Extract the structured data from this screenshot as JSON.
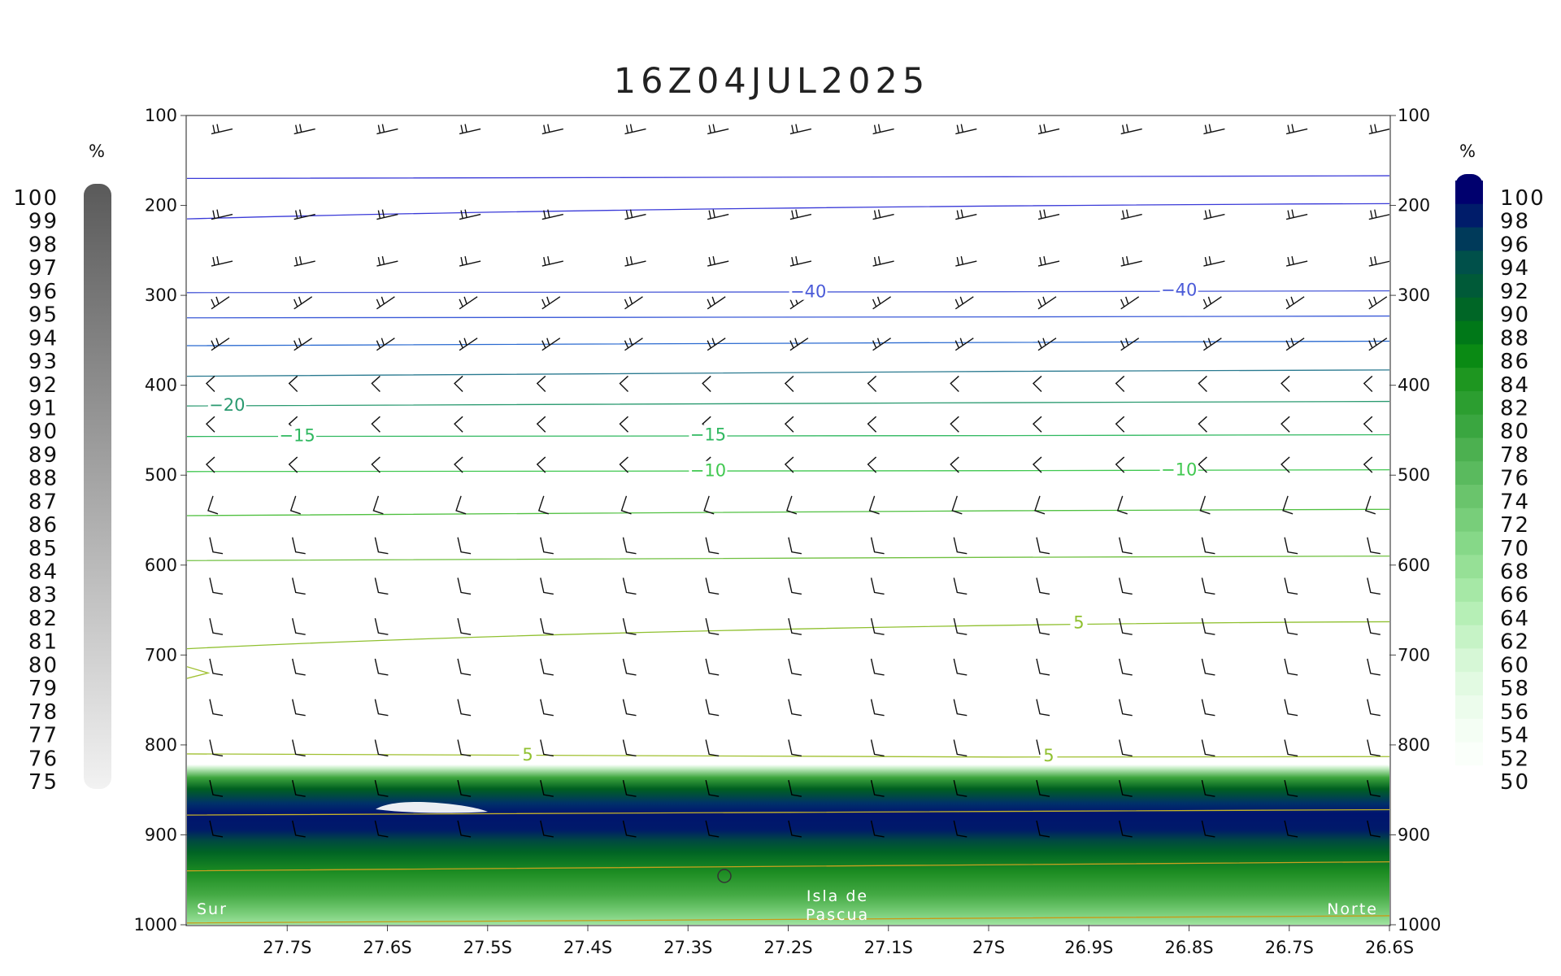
{
  "chart_data": {
    "type": "heatmap",
    "title": "16Z04JUL2025",
    "x_axis": {
      "labels": [
        "27.7S",
        "27.6S",
        "27.5S",
        "27.4S",
        "27.3S",
        "27.2S",
        "27.1S",
        "27S",
        "26.9S",
        "26.8S",
        "26.7S",
        "26.6S"
      ],
      "values": [
        -27.7,
        -27.6,
        -27.5,
        -27.4,
        -27.3,
        -27.2,
        -27.1,
        -27.0,
        -26.9,
        -26.8,
        -26.7,
        -26.6
      ],
      "range": [
        -27.8,
        -26.6
      ]
    },
    "y_axis": {
      "labels": [
        "100",
        "200",
        "300",
        "400",
        "500",
        "600",
        "700",
        "800",
        "900",
        "1000"
      ],
      "values": [
        100,
        200,
        300,
        400,
        500,
        600,
        700,
        800,
        900,
        1000
      ],
      "range": [
        100,
        1000
      ],
      "inverted": true
    },
    "annotations": {
      "left": "Sur",
      "center_line1": "Isla de",
      "center_line2": "Pascua",
      "right": "Norte"
    },
    "colorbar_left": {
      "unit": "%",
      "labels": [
        "100",
        "99",
        "98",
        "97",
        "96",
        "95",
        "94",
        "93",
        "92",
        "91",
        "90",
        "89",
        "88",
        "87",
        "86",
        "85",
        "84",
        "83",
        "82",
        "81",
        "80",
        "79",
        "78",
        "77",
        "76",
        "75"
      ],
      "color_high": "#5a5a5a",
      "color_low": "#f2f2f2"
    },
    "colorbar_right": {
      "unit": "%",
      "labels": [
        "100",
        "98",
        "96",
        "94",
        "92",
        "90",
        "88",
        "86",
        "84",
        "82",
        "80",
        "78",
        "76",
        "74",
        "72",
        "70",
        "68",
        "66",
        "64",
        "62",
        "60",
        "58",
        "56",
        "54",
        "52",
        "50"
      ],
      "colors": [
        "#00006e",
        "#001c6a",
        "#003a5a",
        "#00504a",
        "#005a38",
        "#006626",
        "#007818",
        "#0a8a14",
        "#1e9620",
        "#2c9e30",
        "#3aa640",
        "#4cb050",
        "#5aba5e",
        "#6ac46c",
        "#78ce7a",
        "#86d888",
        "#96e096",
        "#a6e8a6",
        "#b6efb6",
        "#c6f3c6",
        "#d6f7d6",
        "#e2fae2",
        "#ecfcec",
        "#f4fef4",
        "#fafffa",
        "#ffffff"
      ]
    },
    "temperature_contours": [
      {
        "label": "",
        "p": [
          170,
          167
        ],
        "color": "#3a3ad8"
      },
      {
        "label": "",
        "p": [
          215,
          198
        ],
        "color": "#3a3ad8"
      },
      {
        "label": "-40",
        "p": [
          297,
          295
        ],
        "color": "#4a5ad8"
      },
      {
        "label": "",
        "p": [
          325,
          323
        ],
        "color": "#3a5ad8"
      },
      {
        "label": "",
        "p": [
          356,
          351
        ],
        "color": "#2a6ad0"
      },
      {
        "label": "",
        "p": [
          390,
          383
        ],
        "color": "#2a7a90"
      },
      {
        "label": "-20",
        "p": [
          423,
          418
        ],
        "color": "#2a9a70"
      },
      {
        "label": "-15",
        "p": [
          457,
          455
        ],
        "color": "#30b860"
      },
      {
        "label": "-10",
        "p": [
          496,
          494
        ],
        "color": "#40c850"
      },
      {
        "label": "",
        "p": [
          545,
          538
        ],
        "color": "#50c040"
      },
      {
        "label": "",
        "p": [
          595,
          590
        ],
        "color": "#70c040"
      },
      {
        "label": "5",
        "p": [
          693,
          663
        ],
        "color": "#90c030"
      },
      {
        "label": "5",
        "p": [
          810,
          813
        ],
        "color": "#a0c030"
      }
    ],
    "contour_label_positions": {
      "-40": [
        [
          -27.18,
          296
        ],
        [
          -26.81,
          294
        ]
      ],
      "-20": [
        [
          -27.76,
          422
        ]
      ],
      "-15": [
        [
          -27.69,
          456
        ],
        [
          -27.28,
          455
        ]
      ],
      "-10": [
        [
          -27.28,
          495
        ],
        [
          -26.81,
          494
        ]
      ],
      "5": [
        [
          -26.91,
          664
        ],
        [
          -27.46,
          811
        ],
        [
          -26.94,
          812
        ]
      ]
    },
    "humidity_layer": {
      "base_p": 1000,
      "top_p": 822,
      "core_p": 870,
      "max_percent": 100
    },
    "wind_barb_levels": [
      115,
      210,
      262,
      307,
      353,
      398,
      443,
      488,
      534,
      580,
      625,
      670,
      715,
      760,
      805,
      850,
      895
    ]
  }
}
